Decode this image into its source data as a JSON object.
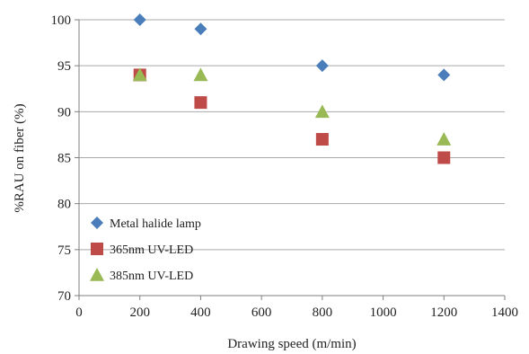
{
  "chart_data": {
    "type": "scatter",
    "title": "",
    "xlabel": "Drawing speed (m/min)",
    "ylabel": "%RAU on fiber (%)",
    "xlim": [
      0,
      1400
    ],
    "ylim": [
      70,
      100
    ],
    "xticks": [
      0,
      200,
      400,
      600,
      800,
      1000,
      1200,
      1400
    ],
    "yticks": [
      70,
      75,
      80,
      85,
      90,
      95,
      100
    ],
    "grid": "horizontal",
    "legend_position": "bottom-left",
    "series": [
      {
        "name": "Metal halide lamp",
        "marker": "diamond",
        "color": "#4a7ebb",
        "x": [
          200,
          400,
          800,
          1200
        ],
        "y": [
          100,
          99,
          95,
          94
        ]
      },
      {
        "name": "365nm UV-LED",
        "marker": "square",
        "color": "#be4b48",
        "x": [
          200,
          400,
          800,
          1200
        ],
        "y": [
          94,
          91,
          87,
          85
        ]
      },
      {
        "name": "385nm UV-LED",
        "marker": "triangle",
        "color": "#98b954",
        "x": [
          200,
          400,
          800,
          1200
        ],
        "y": [
          94,
          94,
          90,
          87
        ]
      }
    ]
  }
}
